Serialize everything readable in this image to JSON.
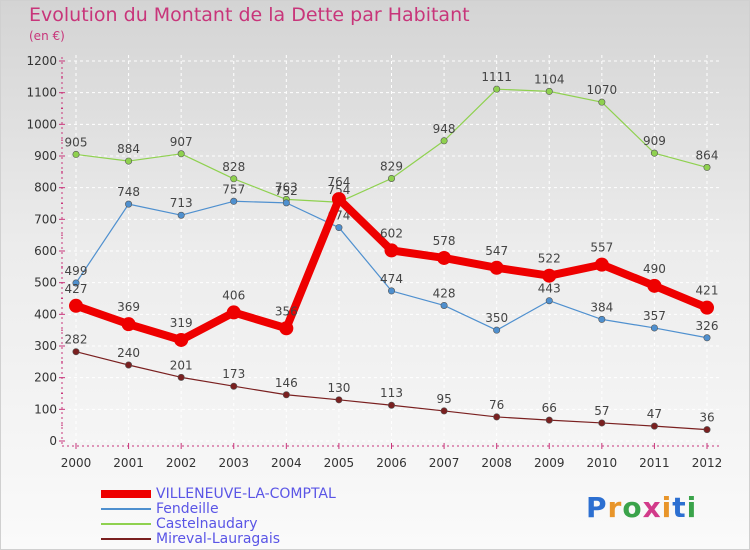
{
  "title": "Evolution du Montant de la Dette par Habitant",
  "unit": "(en €)",
  "logo": {
    "text": "Proxiti",
    "letter_colors": [
      "#2c6fd1",
      "#e8952a",
      "#3aa34a",
      "#d23a8a",
      "#e8952a",
      "#2c6fd1",
      "#3aa34a"
    ]
  },
  "chart_data": {
    "type": "line",
    "title": "Evolution du Montant de la Dette par Habitant",
    "ylabel": "(en €)",
    "xlabel": "",
    "x": [
      "2000",
      "2001",
      "2002",
      "2003",
      "2004",
      "2005",
      "2006",
      "2007",
      "2008",
      "2009",
      "2010",
      "2011",
      "2012"
    ],
    "ylim": [
      0,
      1200
    ],
    "yticks": [
      "0",
      "100",
      "200",
      "300",
      "400",
      "500",
      "600",
      "700",
      "800",
      "900",
      "1000",
      "1100",
      "1200"
    ],
    "grid": true,
    "legend_position": "bottom-left",
    "series": [
      {
        "name": "Castelnaudary",
        "color": "#8fd14f",
        "values": [
          905,
          884,
          907,
          828,
          763,
          754,
          829,
          948,
          1111,
          1104,
          1070,
          909,
          864
        ],
        "labels": [
          "905",
          "884",
          "907",
          "828",
          "763",
          "754",
          "829",
          "948",
          "1111",
          "1104",
          "1070",
          "909",
          "864"
        ]
      },
      {
        "name": "Fendeille",
        "color": "#4f90cf",
        "values": [
          499,
          748,
          713,
          757,
          752,
          674,
          474,
          428,
          350,
          443,
          384,
          357,
          326
        ],
        "labels": [
          "499",
          "748",
          "713",
          "757",
          "752",
          "674",
          "474",
          "428",
          "350",
          "443",
          "384",
          "357",
          "326"
        ]
      },
      {
        "name": "Mireval-Lauragais",
        "color": "#7a2020",
        "values": [
          282,
          240,
          201,
          173,
          146,
          130,
          113,
          95,
          76,
          66,
          57,
          47,
          36
        ],
        "labels": [
          "282",
          "240",
          "201",
          "173",
          "146",
          "130",
          "113",
          "95",
          "76",
          "66",
          "57",
          "47",
          "36"
        ]
      },
      {
        "name": "VILLENEUVE-LA-COMPTAL",
        "color": "#ee0000",
        "values": [
          427,
          369,
          319,
          406,
          356,
          764,
          602,
          578,
          547,
          522,
          557,
          490,
          421
        ],
        "labels": [
          "427",
          "369",
          "319",
          "406",
          "356",
          "764",
          "602",
          "578",
          "547",
          "522",
          "557",
          "490",
          "421"
        ]
      }
    ],
    "legend": [
      "VILLENEUVE-LA-COMPTAL",
      "Fendeille",
      "Castelnaudary",
      "Mireval-Lauragais"
    ]
  }
}
